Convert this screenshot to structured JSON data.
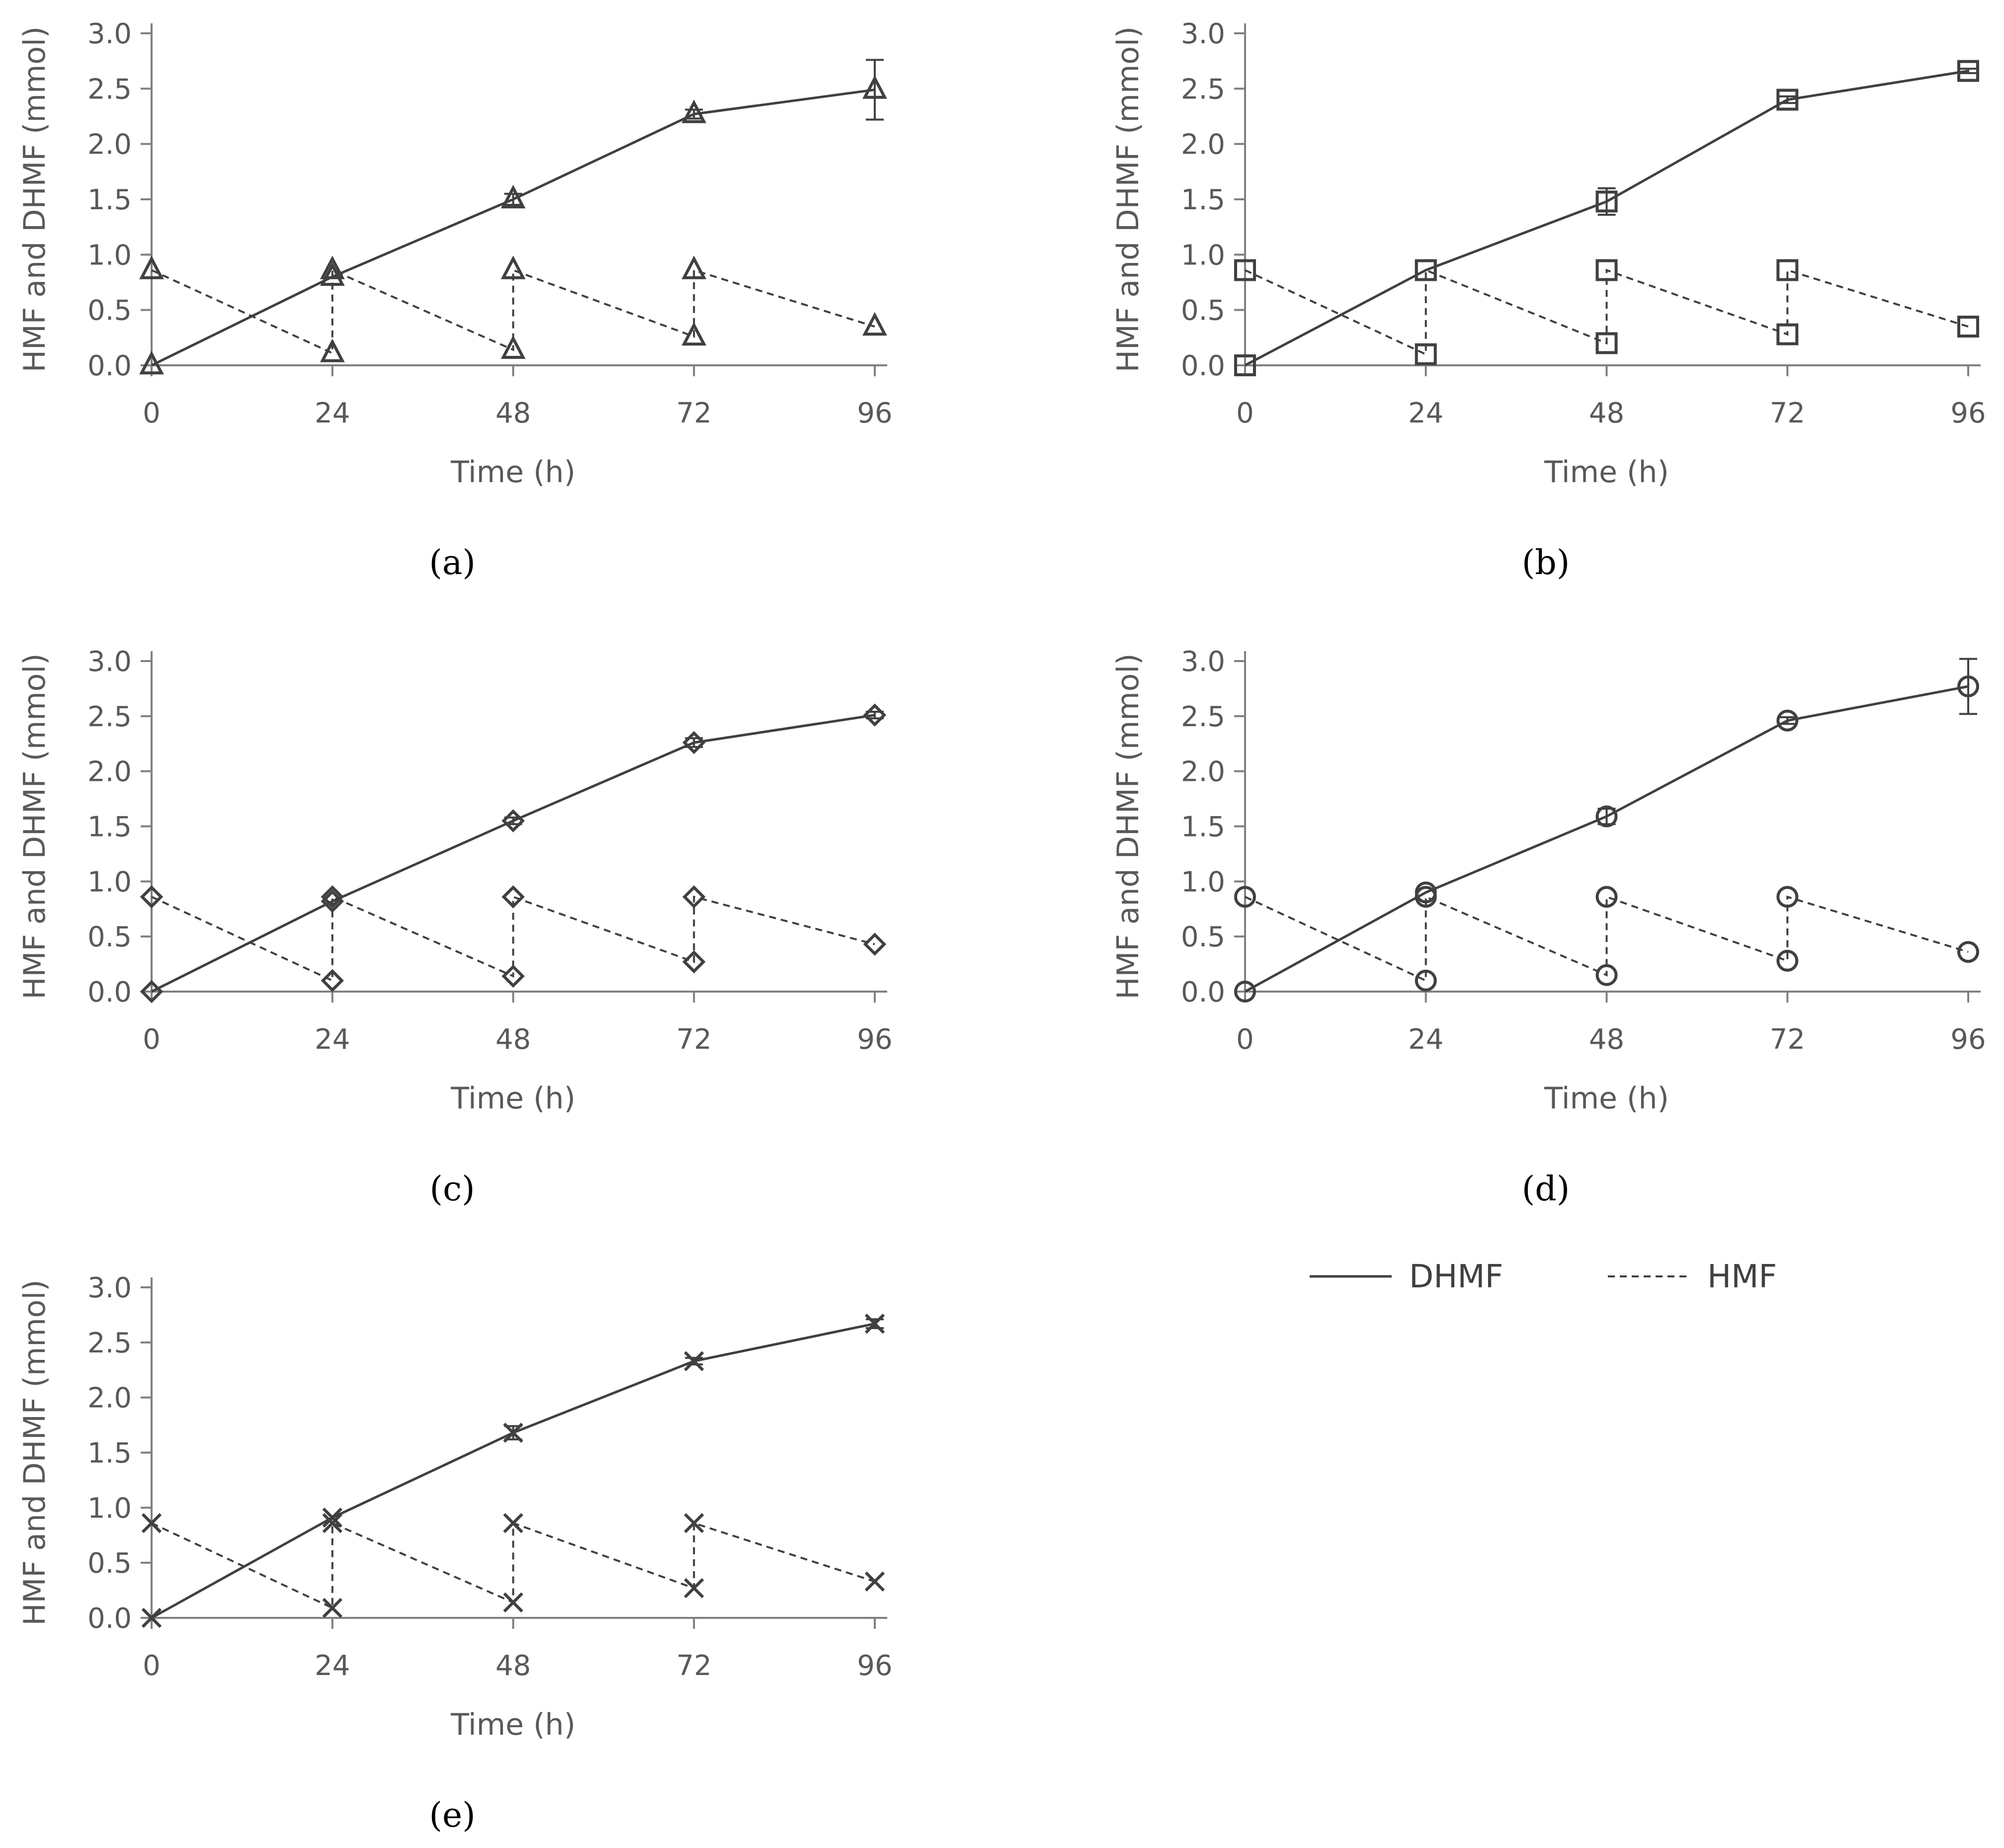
{
  "colors": {
    "ink": "#404040",
    "axis": "#808080",
    "text": "#595959",
    "label": "#000000"
  },
  "legend": [
    {
      "name": "DHMF",
      "style": "solid"
    },
    {
      "name": "HMF",
      "style": "dashed"
    }
  ],
  "chart_data": [
    {
      "type": "line",
      "panel": "(a)",
      "marker": "triangle",
      "xlabel": "Time (h)",
      "ylabel": "HMF and DHMF (mmol)",
      "xlim": [
        0,
        96
      ],
      "ylim": [
        0,
        3.0
      ],
      "xticks": [
        "0",
        "24",
        "48",
        "72",
        "96"
      ],
      "yticks": [
        "0.0",
        "0.5",
        "1.0",
        "1.5",
        "2.0",
        "2.5",
        "3.0"
      ],
      "grid": false,
      "series": [
        {
          "name": "DHMF",
          "x": [
            0,
            24,
            48,
            72,
            96
          ],
          "y": [
            0.0,
            0.8,
            1.5,
            2.27,
            2.49
          ],
          "err": [
            0,
            0,
            0.05,
            0.04,
            0.27
          ]
        },
        {
          "name": "HMF",
          "x": [
            0,
            24,
            24,
            48,
            48,
            72,
            72,
            96
          ],
          "y": [
            0.86,
            0.11,
            0.86,
            0.14,
            0.86,
            0.26,
            0.86,
            0.35
          ]
        }
      ]
    },
    {
      "type": "line",
      "panel": "(b)",
      "marker": "square",
      "xlabel": "Time (h)",
      "ylabel": "HMF and DHMF (mmol)",
      "xlim": [
        0,
        96
      ],
      "ylim": [
        0,
        3.0
      ],
      "xticks": [
        "0",
        "24",
        "48",
        "72",
        "96"
      ],
      "yticks": [
        "0.0",
        "0.5",
        "1.0",
        "1.5",
        "2.0",
        "2.5",
        "3.0"
      ],
      "grid": false,
      "series": [
        {
          "name": "DHMF",
          "x": [
            0,
            24,
            48,
            72,
            96
          ],
          "y": [
            0.0,
            0.86,
            1.48,
            2.4,
            2.66
          ],
          "err": [
            0,
            0,
            0.12,
            0.03,
            0.02
          ]
        },
        {
          "name": "HMF",
          "x": [
            0,
            24,
            24,
            48,
            48,
            72,
            72,
            96
          ],
          "y": [
            0.86,
            0.1,
            0.86,
            0.2,
            0.86,
            0.28,
            0.86,
            0.35
          ]
        }
      ]
    },
    {
      "type": "line",
      "panel": "(c)",
      "marker": "diamond",
      "xlabel": "Time (h)",
      "ylabel": "HMF and DHMF (mmol)",
      "xlim": [
        0,
        96
      ],
      "ylim": [
        0,
        3.0
      ],
      "xticks": [
        "0",
        "24",
        "48",
        "72",
        "96"
      ],
      "yticks": [
        "0.0",
        "0.5",
        "1.0",
        "1.5",
        "2.0",
        "2.5",
        "3.0"
      ],
      "grid": false,
      "series": [
        {
          "name": "DHMF",
          "x": [
            0,
            24,
            48,
            72,
            96
          ],
          "y": [
            0.0,
            0.82,
            1.55,
            2.26,
            2.51
          ],
          "err": [
            0,
            0,
            0.03,
            0.04,
            0.03
          ]
        },
        {
          "name": "HMF",
          "x": [
            0,
            24,
            24,
            48,
            48,
            72,
            72,
            96
          ],
          "y": [
            0.86,
            0.1,
            0.86,
            0.14,
            0.86,
            0.27,
            0.86,
            0.43
          ]
        }
      ]
    },
    {
      "type": "line",
      "panel": "(d)",
      "marker": "circle",
      "xlabel": "Time (h)",
      "ylabel": "HMF and DHMF (mmol)",
      "xlim": [
        0,
        96
      ],
      "ylim": [
        0,
        3.0
      ],
      "xticks": [
        "0",
        "24",
        "48",
        "72",
        "96"
      ],
      "yticks": [
        "0.0",
        "0.5",
        "1.0",
        "1.5",
        "2.0",
        "2.5",
        "3.0"
      ],
      "grid": false,
      "series": [
        {
          "name": "DHMF",
          "x": [
            0,
            24,
            48,
            72,
            96
          ],
          "y": [
            0.0,
            0.9,
            1.59,
            2.46,
            2.77
          ],
          "err": [
            0,
            0,
            0.07,
            0.03,
            0.25
          ]
        },
        {
          "name": "HMF",
          "x": [
            0,
            24,
            24,
            48,
            48,
            72,
            72,
            96
          ],
          "y": [
            0.86,
            0.1,
            0.86,
            0.15,
            0.86,
            0.28,
            0.86,
            0.36
          ]
        }
      ]
    },
    {
      "type": "line",
      "panel": "(e)",
      "marker": "cross",
      "xlabel": "Time (h)",
      "ylabel": "HMF and DHMF (mmol)",
      "xlim": [
        0,
        96
      ],
      "ylim": [
        0,
        3.0
      ],
      "xticks": [
        "0",
        "24",
        "48",
        "72",
        "96"
      ],
      "yticks": [
        "0.0",
        "0.5",
        "1.0",
        "1.5",
        "2.0",
        "2.5",
        "3.0"
      ],
      "grid": false,
      "series": [
        {
          "name": "DHMF",
          "x": [
            0,
            24,
            48,
            72,
            96
          ],
          "y": [
            0.0,
            0.91,
            1.68,
            2.33,
            2.67
          ],
          "err": [
            0,
            0,
            0.06,
            0.03,
            0.04
          ]
        },
        {
          "name": "HMF",
          "x": [
            0,
            24,
            24,
            48,
            48,
            72,
            72,
            96
          ],
          "y": [
            0.86,
            0.09,
            0.86,
            0.14,
            0.86,
            0.27,
            0.86,
            0.33
          ]
        }
      ]
    }
  ]
}
